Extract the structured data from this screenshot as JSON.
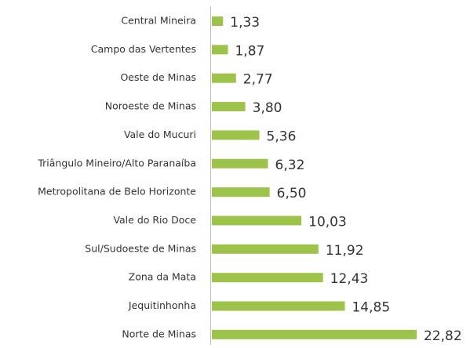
{
  "chart_data": {
    "type": "bar",
    "orientation": "horizontal",
    "categories": [
      "Central Mineira",
      "Campo das Vertentes",
      "Oeste de Minas",
      "Noroeste de Minas",
      "Vale do Mucuri",
      "Triângulo Mineiro/Alto Paranaíba",
      "Metropolitana de Belo Horizonte",
      "Vale do Rio Doce",
      "Sul/Sudoeste de Minas",
      "Zona da Mata",
      "Jequitinhonha",
      "Norte de Minas"
    ],
    "values": [
      1.33,
      1.87,
      2.77,
      3.8,
      5.36,
      6.32,
      6.5,
      10.03,
      11.92,
      12.43,
      14.85,
      22.82
    ],
    "value_labels": [
      "1,33",
      "1,87",
      "2,77",
      "3,80",
      "5,36",
      "6,32",
      "6,50",
      "10,03",
      "11,92",
      "12,43",
      "14,85",
      "22,82"
    ],
    "color": "#9dc34a"
  }
}
